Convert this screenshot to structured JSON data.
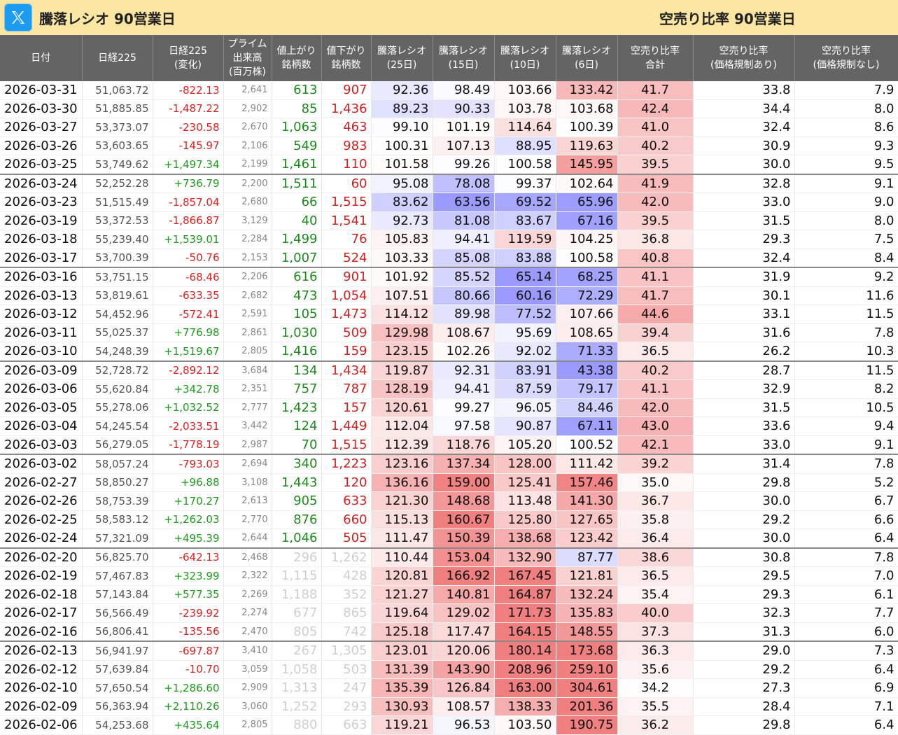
{
  "header": {
    "left_title": "騰落レシオ 90営業日",
    "right_title": "空売り比率 90営業日",
    "icon": "x-logo-icon"
  },
  "colors": {
    "header_bg": "#fbe7a1",
    "table_header_bg": "#646464",
    "up": "#1d8a1d",
    "down": "#d42020",
    "high_ratio": "#f08080",
    "low_ratio": "#9a9aff"
  },
  "columns": [
    {
      "key": "date",
      "label": "日付"
    },
    {
      "key": "nikkei",
      "label": "日経225"
    },
    {
      "key": "change",
      "label": "日経225\n(変化)"
    },
    {
      "key": "volume",
      "label": "プライム\n出来高\n(百万株)"
    },
    {
      "key": "adv",
      "label": "値上がり\n銘柄数"
    },
    {
      "key": "dec",
      "label": "値下がり\n銘柄数"
    },
    {
      "key": "r25",
      "label": "騰落レシオ\n(25日)"
    },
    {
      "key": "r15",
      "label": "騰落レシオ\n(15日)"
    },
    {
      "key": "r10",
      "label": "騰落レシオ\n(10日)"
    },
    {
      "key": "r6",
      "label": "騰落レシオ\n(6日)"
    },
    {
      "key": "s_total",
      "label": "空売り比率\n合計"
    },
    {
      "key": "s_reg",
      "label": "空売り比率\n(価格規制あり)"
    },
    {
      "key": "s_noreg",
      "label": "空売り比率\n(価格規制なし)"
    }
  ],
  "rows": [
    [
      "2026-03-31",
      "51,063.72",
      "-822.13",
      "2,641",
      "613",
      "907",
      "92.36",
      "98.49",
      "103.66",
      "133.42",
      "41.7",
      "33.8",
      "7.9"
    ],
    [
      "2026-03-30",
      "51,885.85",
      "-1,487.22",
      "2,902",
      "85",
      "1,436",
      "89.23",
      "90.33",
      "103.78",
      "103.68",
      "42.4",
      "34.4",
      "8.0"
    ],
    [
      "2026-03-27",
      "53,373.07",
      "-230.58",
      "2,670",
      "1,063",
      "463",
      "99.10",
      "101.19",
      "114.64",
      "100.39",
      "41.0",
      "32.4",
      "8.6"
    ],
    [
      "2026-03-26",
      "53,603.65",
      "-145.97",
      "2,106",
      "549",
      "983",
      "100.31",
      "107.13",
      "88.95",
      "119.63",
      "40.2",
      "30.9",
      "9.3"
    ],
    [
      "2026-03-25",
      "53,749.62",
      "+1,497.34",
      "2,199",
      "1,461",
      "110",
      "101.58",
      "99.26",
      "100.58",
      "145.95",
      "39.5",
      "30.0",
      "9.5"
    ],
    [
      "2026-03-24",
      "52,252.28",
      "+736.79",
      "2,200",
      "1,511",
      "60",
      "95.08",
      "78.08",
      "99.37",
      "102.64",
      "41.9",
      "32.8",
      "9.1"
    ],
    [
      "2026-03-23",
      "51,515.49",
      "-1,857.04",
      "2,680",
      "66",
      "1,515",
      "83.62",
      "63.56",
      "69.52",
      "65.96",
      "42.0",
      "33.0",
      "9.0"
    ],
    [
      "2026-03-19",
      "53,372.53",
      "-1,866.87",
      "3,129",
      "40",
      "1,541",
      "92.73",
      "81.08",
      "83.67",
      "67.16",
      "39.5",
      "31.5",
      "8.0"
    ],
    [
      "2026-03-18",
      "55,239.40",
      "+1,539.01",
      "2,284",
      "1,499",
      "76",
      "105.83",
      "94.41",
      "119.59",
      "104.25",
      "36.8",
      "29.3",
      "7.5"
    ],
    [
      "2026-03-17",
      "53,700.39",
      "-50.76",
      "2,153",
      "1,007",
      "524",
      "103.33",
      "85.08",
      "83.88",
      "100.58",
      "40.8",
      "32.4",
      "8.4"
    ],
    [
      "2026-03-16",
      "53,751.15",
      "-68.46",
      "2,206",
      "616",
      "901",
      "101.92",
      "85.52",
      "65.14",
      "68.25",
      "41.1",
      "31.9",
      "9.2"
    ],
    [
      "2026-03-13",
      "53,819.61",
      "-633.35",
      "2,682",
      "473",
      "1,054",
      "107.51",
      "80.66",
      "60.16",
      "72.29",
      "41.7",
      "30.1",
      "11.6"
    ],
    [
      "2026-03-12",
      "54,452.96",
      "-572.41",
      "2,591",
      "105",
      "1,473",
      "114.12",
      "89.98",
      "77.52",
      "107.66",
      "44.6",
      "33.1",
      "11.5"
    ],
    [
      "2026-03-11",
      "55,025.37",
      "+776.98",
      "2,861",
      "1,030",
      "509",
      "129.98",
      "108.67",
      "95.69",
      "108.65",
      "39.4",
      "31.6",
      "7.8"
    ],
    [
      "2026-03-10",
      "54,248.39",
      "+1,519.67",
      "2,805",
      "1,416",
      "159",
      "123.15",
      "102.26",
      "92.02",
      "71.33",
      "36.5",
      "26.2",
      "10.3"
    ],
    [
      "2026-03-09",
      "52,728.72",
      "-2,892.12",
      "3,684",
      "134",
      "1,434",
      "119.87",
      "92.31",
      "83.91",
      "43.38",
      "40.2",
      "28.7",
      "11.5"
    ],
    [
      "2026-03-06",
      "55,620.84",
      "+342.78",
      "2,351",
      "757",
      "787",
      "128.19",
      "94.41",
      "87.59",
      "79.17",
      "41.1",
      "32.9",
      "8.2"
    ],
    [
      "2026-03-05",
      "55,278.06",
      "+1,032.52",
      "2,777",
      "1,423",
      "157",
      "120.61",
      "99.27",
      "96.05",
      "84.46",
      "42.0",
      "31.5",
      "10.5"
    ],
    [
      "2026-03-04",
      "54,245.54",
      "-2,033.51",
      "3,442",
      "124",
      "1,449",
      "112.04",
      "97.58",
      "90.87",
      "67.11",
      "43.0",
      "33.6",
      "9.4"
    ],
    [
      "2026-03-03",
      "56,279.05",
      "-1,778.19",
      "2,987",
      "70",
      "1,515",
      "112.39",
      "118.76",
      "105.20",
      "100.52",
      "42.1",
      "33.0",
      "9.1"
    ],
    [
      "2026-03-02",
      "58,057.24",
      "-793.03",
      "2,694",
      "340",
      "1,223",
      "123.16",
      "137.34",
      "128.00",
      "111.42",
      "39.2",
      "31.4",
      "7.8"
    ],
    [
      "2026-02-27",
      "58,850.27",
      "+96.88",
      "3,108",
      "1,443",
      "120",
      "136.16",
      "159.00",
      "125.41",
      "157.46",
      "35.0",
      "29.8",
      "5.2"
    ],
    [
      "2026-02-26",
      "58,753.39",
      "+170.27",
      "2,613",
      "905",
      "633",
      "121.30",
      "148.68",
      "113.48",
      "141.30",
      "36.7",
      "30.0",
      "6.7"
    ],
    [
      "2026-02-25",
      "58,583.12",
      "+1,262.03",
      "2,770",
      "876",
      "660",
      "115.13",
      "160.67",
      "125.80",
      "127.65",
      "35.8",
      "29.2",
      "6.6"
    ],
    [
      "2026-02-24",
      "57,321.09",
      "+495.39",
      "2,644",
      "1,046",
      "505",
      "111.47",
      "150.39",
      "138.68",
      "123.42",
      "36.4",
      "30.0",
      "6.4"
    ],
    [
      "2026-02-20",
      "56,825.70",
      "-642.13",
      "2,468",
      "296",
      "1,262",
      "110.44",
      "153.04",
      "132.90",
      "87.77",
      "38.6",
      "30.8",
      "7.8"
    ],
    [
      "2026-02-19",
      "57,467.83",
      "+323.99",
      "2,322",
      "1,115",
      "428",
      "120.81",
      "166.92",
      "167.45",
      "121.81",
      "36.5",
      "29.5",
      "7.0"
    ],
    [
      "2026-02-18",
      "57,143.84",
      "+577.35",
      "2,269",
      "1,188",
      "352",
      "121.27",
      "140.81",
      "164.87",
      "132.24",
      "35.4",
      "29.3",
      "6.1"
    ],
    [
      "2026-02-17",
      "56,566.49",
      "-239.92",
      "2,274",
      "677",
      "865",
      "119.64",
      "129.02",
      "171.73",
      "135.83",
      "40.0",
      "32.3",
      "7.7"
    ],
    [
      "2026-02-16",
      "56,806.41",
      "-135.56",
      "2,470",
      "805",
      "742",
      "125.18",
      "117.47",
      "164.15",
      "148.55",
      "37.3",
      "31.3",
      "6.0"
    ],
    [
      "2026-02-13",
      "56,941.97",
      "-697.87",
      "3,410",
      "267",
      "1,305",
      "123.01",
      "120.06",
      "180.14",
      "173.68",
      "36.3",
      "29.0",
      "7.3"
    ],
    [
      "2026-02-12",
      "57,639.84",
      "-10.70",
      "3,059",
      "1,058",
      "503",
      "131.39",
      "143.90",
      "208.96",
      "259.10",
      "35.6",
      "29.2",
      "6.4"
    ],
    [
      "2026-02-10",
      "57,650.54",
      "+1,286.60",
      "2,909",
      "1,313",
      "247",
      "135.39",
      "126.84",
      "163.00",
      "304.61",
      "34.2",
      "27.3",
      "6.9"
    ],
    [
      "2026-02-09",
      "56,363.94",
      "+2,110.26",
      "3,060",
      "1,252",
      "293",
      "130.93",
      "108.57",
      "138.33",
      "201.36",
      "35.5",
      "28.4",
      "7.1"
    ],
    [
      "2026-02-06",
      "54,253.68",
      "+435.64",
      "2,805",
      "880",
      "663",
      "119.21",
      "96.53",
      "103.50",
      "190.75",
      "36.2",
      "29.8",
      "6.4"
    ]
  ],
  "week_start_indices": [
    5,
    10,
    15,
    20,
    25,
    30
  ],
  "faint_count_from_index": 25
}
